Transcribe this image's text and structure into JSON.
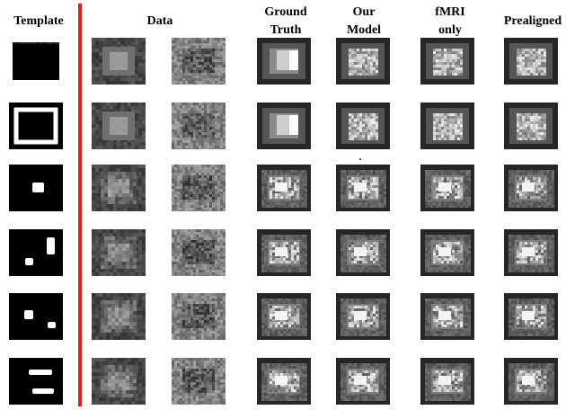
{
  "headers": {
    "template": "Template",
    "data": "Data",
    "ground_truth": "Ground\nTruth",
    "our_model": "Our\nModel",
    "fmri_only": "fMRI\nonly",
    "prealigned": "Prealigned"
  },
  "colors": {
    "divider": "#e32020",
    "frame_dark": "#2a2a2a",
    "data_bg": "#4a4a4a",
    "noise_bg": "#8a8a8a",
    "white": "#ffffff"
  },
  "rows": [
    {
      "template": "solid-black-block"
    },
    {
      "template": "white-hollow-square"
    },
    {
      "template": "single-blob"
    },
    {
      "template": "two-blobs"
    },
    {
      "template": "two-small-blobs"
    },
    {
      "template": "two-horizontal-bars"
    }
  ]
}
